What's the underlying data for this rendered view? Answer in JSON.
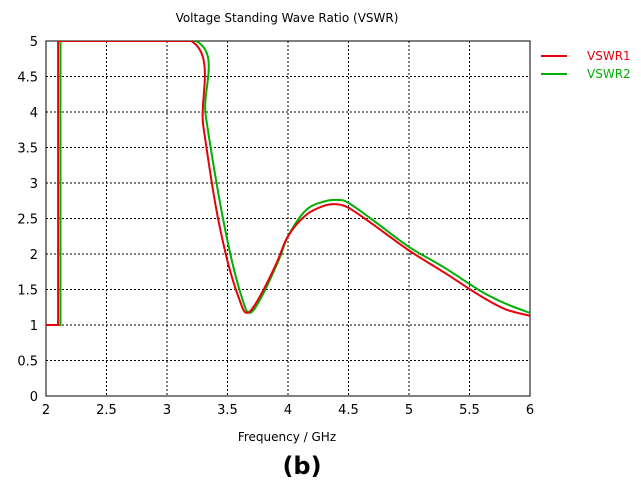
{
  "chart_data": {
    "type": "line",
    "title": "Voltage Standing Wave Ratio (VSWR)",
    "xlabel": "Frequency / GHz",
    "ylabel": "",
    "xlim": [
      2,
      6
    ],
    "ylim": [
      0,
      5
    ],
    "x_ticks": [
      "2",
      "2.5",
      "3",
      "3.5",
      "4",
      "4.5",
      "5",
      "5.5",
      "6"
    ],
    "y_ticks": [
      "0",
      "0.5",
      "1",
      "1.5",
      "2",
      "2.5",
      "3",
      "3.5",
      "4",
      "4.5",
      "5"
    ],
    "grid": true,
    "legend_position": "top-right, outside plot",
    "series": [
      {
        "name": "VSWR1",
        "color": "#e8000b",
        "points": [
          [
            2.0,
            1.0
          ],
          [
            2.1,
            1.0
          ],
          [
            2.1,
            5.0
          ],
          [
            3.2,
            5.0
          ],
          [
            3.3,
            3.8
          ],
          [
            3.4,
            2.7
          ],
          [
            3.5,
            1.9
          ],
          [
            3.6,
            1.35
          ],
          [
            3.66,
            1.17
          ],
          [
            3.75,
            1.35
          ],
          [
            3.9,
            1.85
          ],
          [
            4.0,
            2.25
          ],
          [
            4.15,
            2.55
          ],
          [
            4.3,
            2.68
          ],
          [
            4.4,
            2.7
          ],
          [
            4.5,
            2.65
          ],
          [
            4.7,
            2.42
          ],
          [
            5.0,
            2.05
          ],
          [
            5.3,
            1.73
          ],
          [
            5.6,
            1.4
          ],
          [
            5.8,
            1.22
          ],
          [
            6.0,
            1.13
          ]
        ]
      },
      {
        "name": "VSWR2",
        "color": "#00b000",
        "points": [
          [
            2.0,
            1.0
          ],
          [
            2.12,
            1.0
          ],
          [
            2.12,
            5.0
          ],
          [
            3.24,
            5.0
          ],
          [
            3.32,
            3.95
          ],
          [
            3.43,
            2.8
          ],
          [
            3.53,
            1.95
          ],
          [
            3.62,
            1.38
          ],
          [
            3.68,
            1.17
          ],
          [
            3.77,
            1.36
          ],
          [
            3.92,
            1.9
          ],
          [
            4.0,
            2.25
          ],
          [
            4.15,
            2.62
          ],
          [
            4.3,
            2.74
          ],
          [
            4.42,
            2.76
          ],
          [
            4.5,
            2.72
          ],
          [
            4.7,
            2.48
          ],
          [
            5.0,
            2.1
          ],
          [
            5.3,
            1.8
          ],
          [
            5.6,
            1.47
          ],
          [
            5.8,
            1.3
          ],
          [
            6.0,
            1.17
          ]
        ]
      }
    ]
  },
  "caption": "(b)"
}
